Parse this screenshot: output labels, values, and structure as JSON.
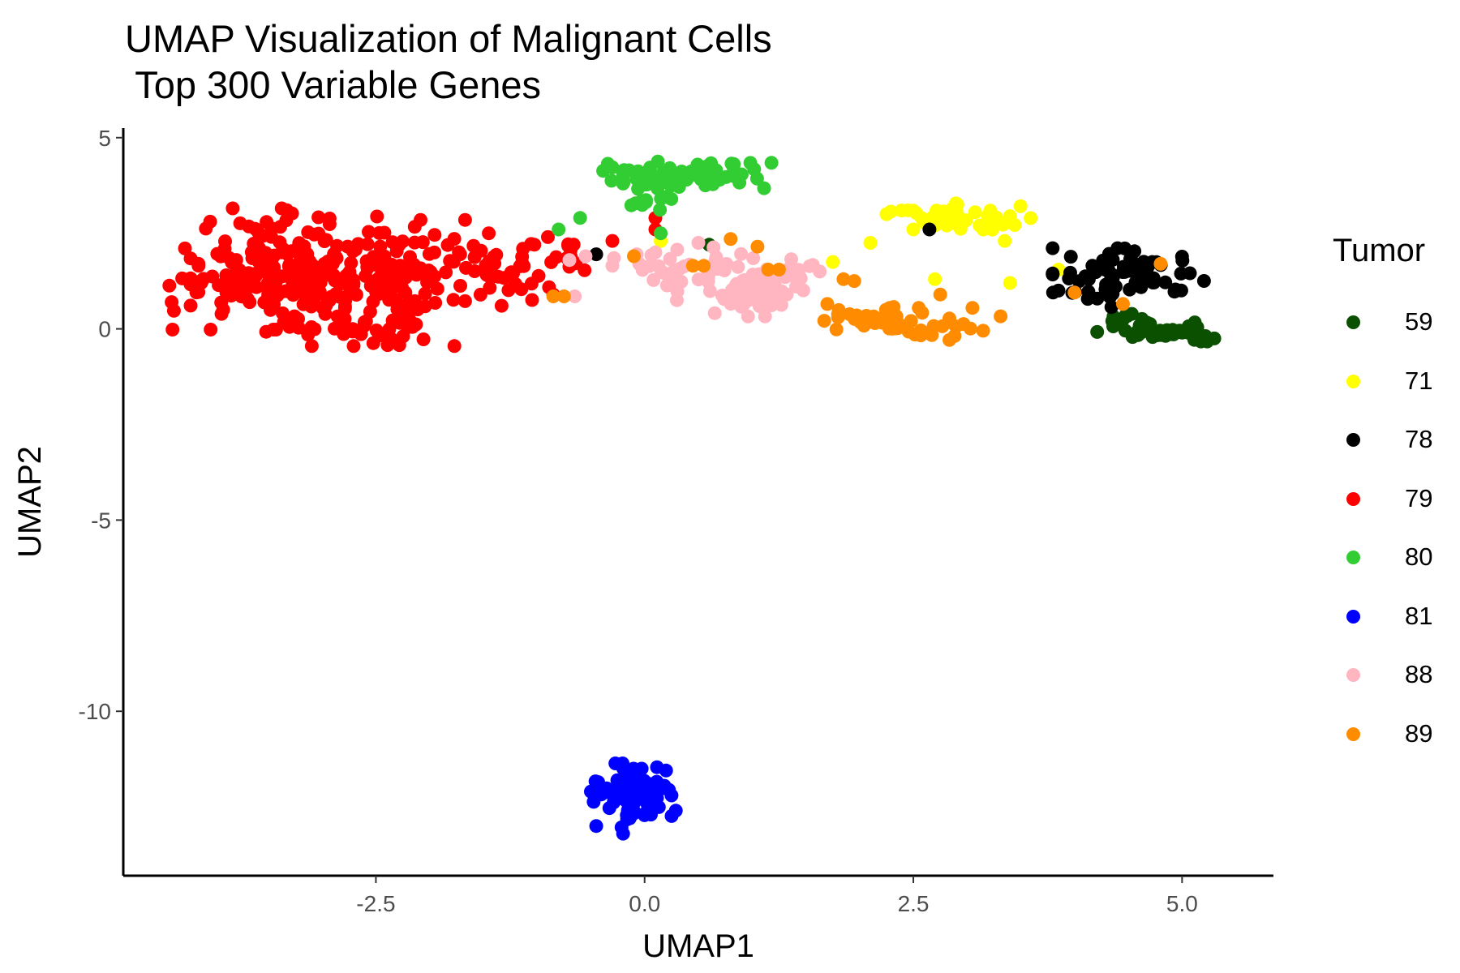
{
  "chart_data": {
    "type": "scatter",
    "title": "UMAP Visualization of Malignant Cells",
    "subtitle": " Top 300 Variable Genes",
    "xlabel": "UMAP1",
    "ylabel": "UMAP2",
    "xlim": [
      -4.85,
      5.85
    ],
    "ylim": [
      -14.3,
      5.25
    ],
    "x_ticks": [
      -2.5,
      0.0,
      2.5,
      5.0
    ],
    "x_tick_labels": [
      "-2.5",
      "0.0",
      "2.5",
      "5.0"
    ],
    "y_ticks": [
      -10,
      -5,
      0,
      5
    ],
    "y_tick_labels": [
      "-10",
      "-5",
      "0",
      "5"
    ],
    "grid": false,
    "legend": {
      "title": "Tumor",
      "position": "right"
    },
    "series": [
      {
        "name": "59",
        "color": "#0b5000",
        "clusters": [
          {
            "cx": 4.85,
            "cy": -0.05,
            "sx": 0.3,
            "sy": 0.14,
            "n": 42
          },
          {
            "cx": 4.5,
            "cy": 0.35,
            "sx": 0.12,
            "sy": 0.12,
            "n": 6
          }
        ],
        "points": [
          [
            0.6,
            2.2
          ],
          [
            5.3,
            -0.25
          ],
          [
            5.0,
            -0.1
          ]
        ]
      },
      {
        "name": "71",
        "color": "#ffff00",
        "clusters": [
          {
            "cx": 2.95,
            "cy": 2.85,
            "sx": 0.3,
            "sy": 0.2,
            "n": 35
          }
        ],
        "points": [
          [
            2.25,
            3.0
          ],
          [
            2.1,
            2.25
          ],
          [
            1.75,
            1.75
          ],
          [
            2.7,
            1.3
          ],
          [
            3.4,
            1.2
          ],
          [
            3.35,
            2.3
          ],
          [
            3.15,
            2.6
          ],
          [
            3.85,
            1.55
          ],
          [
            0.15,
            2.3
          ],
          [
            2.5,
            2.6
          ],
          [
            2.45,
            3.1
          ]
        ]
      },
      {
        "name": "78",
        "color": "#000000",
        "clusters": [
          {
            "cx": 4.5,
            "cy": 1.45,
            "sx": 0.32,
            "sy": 0.3,
            "n": 60
          },
          {
            "cx": 4.25,
            "cy": 0.9,
            "sx": 0.15,
            "sy": 0.15,
            "n": 10
          }
        ],
        "points": [
          [
            2.65,
            2.6
          ],
          [
            3.8,
            0.95
          ],
          [
            3.85,
            1.0
          ],
          [
            -0.45,
            1.95
          ]
        ]
      },
      {
        "name": "79",
        "color": "#ff0000",
        "clusters": [
          {
            "cx": -3.3,
            "cy": 1.5,
            "sx": 0.42,
            "sy": 0.75,
            "n": 150
          },
          {
            "cx": -2.55,
            "cy": 1.2,
            "sx": 0.4,
            "sy": 0.75,
            "n": 110
          },
          {
            "cx": -1.8,
            "cy": 1.5,
            "sx": 0.3,
            "sy": 0.45,
            "n": 45
          },
          {
            "cx": -3.9,
            "cy": 1.3,
            "sx": 0.3,
            "sy": 0.6,
            "n": 30
          },
          {
            "cx": -1.25,
            "cy": 1.45,
            "sx": 0.2,
            "sy": 0.35,
            "n": 20
          },
          {
            "cx": -2.65,
            "cy": -0.05,
            "sx": 0.35,
            "sy": 0.2,
            "n": 25
          },
          {
            "cx": -0.7,
            "cy": 1.95,
            "sx": 0.2,
            "sy": 0.25,
            "n": 12
          }
        ],
        "points": [
          [
            -4.4,
            0.7
          ],
          [
            0.1,
            2.9
          ],
          [
            0.1,
            2.6
          ],
          [
            -0.3,
            2.3
          ],
          [
            -1.45,
            2.5
          ],
          [
            -0.85,
            0.9
          ],
          [
            -0.9,
            2.4
          ]
        ]
      },
      {
        "name": "80",
        "color": "#32cd32",
        "clusters": [
          {
            "cx": 0.3,
            "cy": 4.0,
            "sx": 0.4,
            "sy": 0.18,
            "n": 80
          },
          {
            "cx": 0.1,
            "cy": 3.3,
            "sx": 0.15,
            "sy": 0.15,
            "n": 10
          }
        ],
        "points": [
          [
            -0.8,
            2.6
          ],
          [
            -0.6,
            2.9
          ],
          [
            0.15,
            2.5
          ],
          [
            0.8,
            0.75
          ],
          [
            -0.2,
            3.8
          ]
        ]
      },
      {
        "name": "81",
        "color": "#0000ff",
        "clusters": [
          {
            "cx": -0.15,
            "cy": -12.2,
            "sx": 0.2,
            "sy": 0.38,
            "n": 70
          }
        ],
        "points": [
          [
            -0.2,
            -13.2
          ],
          [
            -0.45,
            -13.0
          ],
          [
            0.2,
            -11.55
          ],
          [
            -0.5,
            -12.1
          ],
          [
            0.25,
            -12.2
          ]
        ]
      },
      {
        "name": "88",
        "color": "#ffb6c1",
        "clusters": [
          {
            "cx": 1.05,
            "cy": 1.05,
            "sx": 0.2,
            "sy": 0.33,
            "n": 55
          },
          {
            "cx": 0.35,
            "cy": 1.6,
            "sx": 0.3,
            "sy": 0.3,
            "n": 35
          },
          {
            "cx": 1.4,
            "cy": 1.55,
            "sx": 0.12,
            "sy": 0.18,
            "n": 10
          }
        ],
        "points": [
          [
            -0.55,
            1.9
          ],
          [
            -0.3,
            1.65
          ],
          [
            -0.65,
            0.85
          ],
          [
            -0.7,
            1.8
          ],
          [
            0.3,
            0.75
          ],
          [
            0.5,
            2.25
          ],
          [
            0.1,
            2.0
          ],
          [
            -0.05,
            1.7
          ]
        ]
      },
      {
        "name": "89",
        "color": "#ff8c00",
        "clusters": [
          {
            "cx": 2.5,
            "cy": 0.1,
            "sx": 0.4,
            "sy": 0.2,
            "n": 42
          },
          {
            "cx": 2.2,
            "cy": 0.5,
            "sx": 0.3,
            "sy": 0.2,
            "n": 8
          }
        ],
        "points": [
          [
            1.85,
            1.3
          ],
          [
            1.8,
            0.3
          ],
          [
            1.7,
            0.65
          ],
          [
            3.05,
            0.55
          ],
          [
            2.75,
            0.9
          ],
          [
            2.55,
            0.55
          ],
          [
            4.8,
            1.7
          ],
          [
            4.45,
            0.65
          ],
          [
            4.0,
            0.95
          ],
          [
            1.15,
            1.55
          ],
          [
            1.25,
            1.55
          ],
          [
            1.05,
            2.15
          ],
          [
            0.8,
            2.35
          ],
          [
            0.45,
            1.65
          ],
          [
            0.55,
            1.65
          ],
          [
            -0.75,
            0.85
          ],
          [
            -0.85,
            0.85
          ],
          [
            -0.1,
            1.9
          ],
          [
            1.95,
            1.25
          ]
        ]
      }
    ]
  }
}
